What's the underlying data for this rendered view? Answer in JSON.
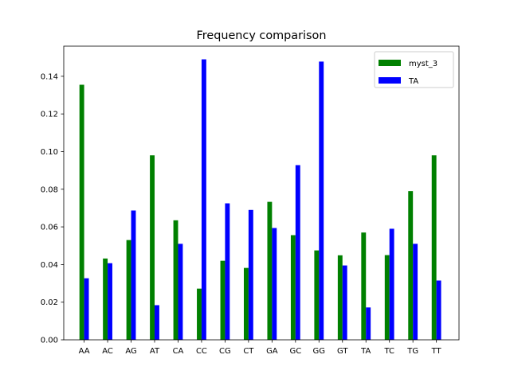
{
  "chart_data": {
    "type": "bar",
    "title": "Frequency comparison",
    "xlabel": "",
    "ylabel": "",
    "categories": [
      "AA",
      "AC",
      "AG",
      "AT",
      "CA",
      "CC",
      "CG",
      "CT",
      "GA",
      "GC",
      "GG",
      "GT",
      "TA",
      "TC",
      "TG",
      "TT"
    ],
    "series": [
      {
        "name": "myst_3",
        "color": "#008000",
        "values": [
          0.1355,
          0.0432,
          0.053,
          0.098,
          0.0635,
          0.0272,
          0.042,
          0.0382,
          0.0733,
          0.0556,
          0.0475,
          0.0449,
          0.057,
          0.045,
          0.079,
          0.098
        ]
      },
      {
        "name": "TA",
        "color": "#0000ff",
        "values": [
          0.0327,
          0.0407,
          0.0687,
          0.0184,
          0.051,
          0.149,
          0.0725,
          0.069,
          0.0594,
          0.0928,
          0.1478,
          0.0395,
          0.0172,
          0.059,
          0.051,
          0.0315
        ]
      }
    ],
    "ylim": [
      0,
      0.156
    ],
    "yticks": [
      "0.00",
      "0.02",
      "0.04",
      "0.06",
      "0.08",
      "0.10",
      "0.12",
      "0.14"
    ],
    "ytick_values": [
      0,
      0.02,
      0.04,
      0.06,
      0.08,
      0.1,
      0.12,
      0.14
    ],
    "grid": false,
    "legend_position": "top-right"
  }
}
